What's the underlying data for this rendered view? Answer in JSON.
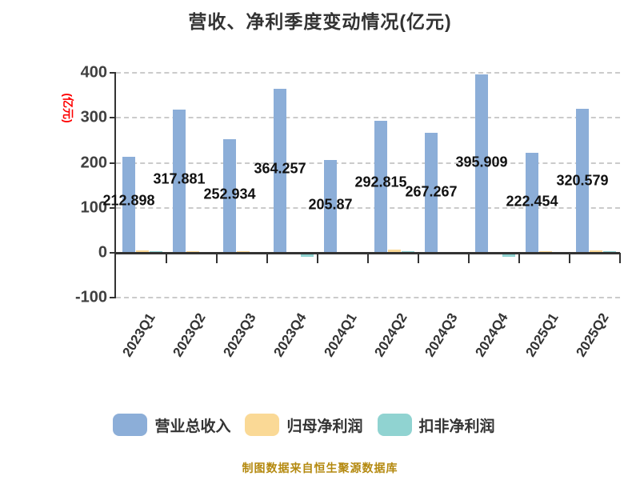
{
  "title": "营收、净利季度变动情况(亿元)",
  "y_axis_label": "(亿元)",
  "footer_note": "制图数据来自恒生聚源数据库",
  "colors": {
    "revenue_bar": "#8caed8",
    "net_profit_bar": "#fad996",
    "deducted_profit_bar": "#90d3d1",
    "gridline": "#cbcbcb",
    "axis": "#333333",
    "title_text": "#333333",
    "tick_text": "#404040",
    "value_label_text": "#111111",
    "y_axis_label_text": "#fe0000",
    "footer_text": "#b4890f"
  },
  "chart_data": {
    "type": "bar",
    "title": "营收、净利季度变动情况(亿元)",
    "ylabel": "(亿元)",
    "categories": [
      "2023Q1",
      "2023Q2",
      "2023Q3",
      "2023Q4",
      "2024Q1",
      "2024Q2",
      "2024Q3",
      "2024Q4",
      "2025Q1",
      "2025Q2"
    ],
    "series": [
      {
        "name": "营业总收入",
        "color": "#8caed8",
        "values": [
          212.898,
          317.881,
          252.934,
          364.257,
          205.87,
          292.815,
          267.267,
          395.909,
          222.454,
          320.579
        ]
      },
      {
        "name": "归母净利润",
        "color": "#fad996",
        "values_estimated": true,
        "values": [
          5,
          4,
          3,
          1,
          1,
          8,
          2,
          1,
          4,
          5
        ]
      },
      {
        "name": "扣非净利润",
        "color": "#90d3d1",
        "values_estimated": true,
        "values": [
          3,
          -1,
          2,
          -9,
          -3,
          4,
          -1,
          -8,
          2,
          3
        ]
      }
    ],
    "value_labels": [
      "212.898",
      "317.881",
      "252.934",
      "364.257",
      "205.87",
      "292.815",
      "267.267",
      "395.909",
      "222.454",
      "320.579"
    ],
    "yticks": [
      400,
      300,
      200,
      100,
      0,
      -100
    ],
    "ylim": [
      -100,
      400
    ],
    "grid": "dashed horizontal",
    "legend_position": "bottom"
  },
  "legend": {
    "items": [
      {
        "label": "营业总收入",
        "color": "#8caed8"
      },
      {
        "label": "归母净利润",
        "color": "#fad996"
      },
      {
        "label": "扣非净利润",
        "color": "#90d3d1"
      }
    ]
  }
}
